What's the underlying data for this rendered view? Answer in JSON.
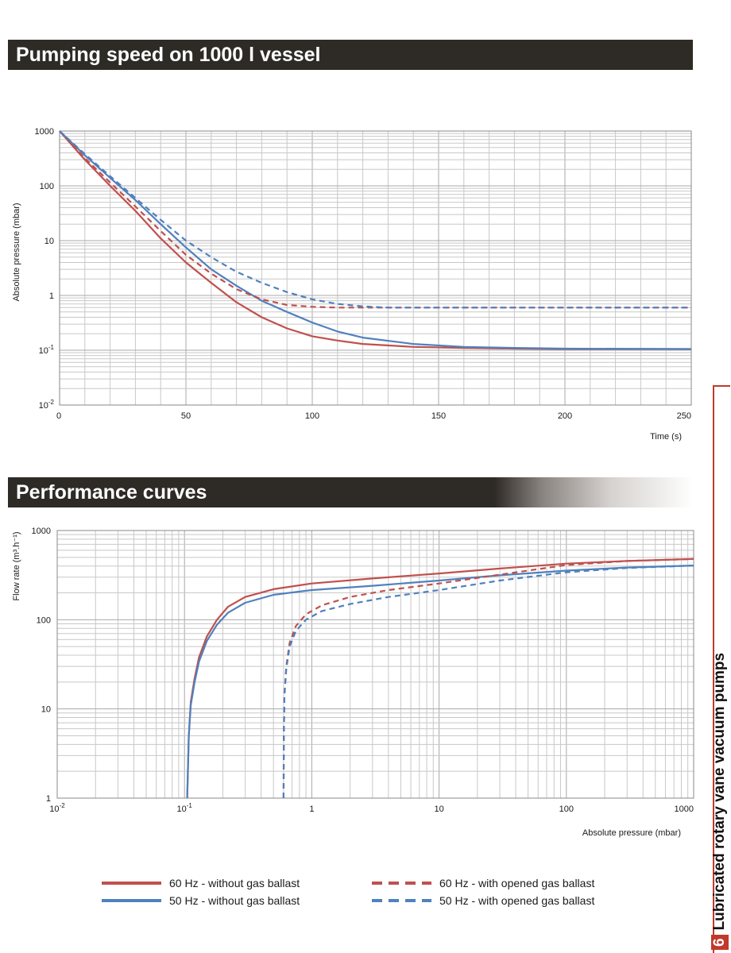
{
  "headers": {
    "pumping_speed": "Pumping speed on 1000 l vessel",
    "performance": "Performance curves"
  },
  "sidebar": {
    "number": "6",
    "label": "Lubricated rotary vane vacuum pumps"
  },
  "colors": {
    "red": "#c0504d",
    "blue": "#4f81bd",
    "grid": "#c8c8c8"
  },
  "chart_data": [
    {
      "type": "line",
      "title": "Pumping speed on 1000 l vessel",
      "xlabel": "Time (s)",
      "ylabel": "Absolute pressure  (mbar)",
      "xlim": [
        0,
        250
      ],
      "ylim": [
        0.01,
        1000
      ],
      "yscale": "log",
      "grid": true,
      "x_ticks": [
        "0",
        "50",
        "100",
        "150",
        "200",
        "250"
      ],
      "series": [
        {
          "name": "60 Hz - without gas ballast",
          "color": "#c0504d",
          "dash": false,
          "x": [
            0,
            10,
            20,
            30,
            40,
            50,
            60,
            70,
            80,
            90,
            100,
            110,
            120,
            140,
            160,
            180,
            200,
            250
          ],
          "y": [
            1000,
            300,
            100,
            35,
            11,
            4,
            1.7,
            0.75,
            0.4,
            0.25,
            0.18,
            0.15,
            0.13,
            0.115,
            0.11,
            0.107,
            0.105,
            0.105
          ]
        },
        {
          "name": "50 Hz - without gas ballast",
          "color": "#4f81bd",
          "dash": false,
          "x": [
            0,
            10,
            20,
            30,
            40,
            50,
            60,
            70,
            80,
            90,
            100,
            110,
            120,
            140,
            160,
            180,
            200,
            250
          ],
          "y": [
            1000,
            360,
            140,
            55,
            20,
            7.5,
            3,
            1.5,
            0.8,
            0.5,
            0.32,
            0.22,
            0.17,
            0.13,
            0.115,
            0.11,
            0.107,
            0.105
          ]
        },
        {
          "name": "60 Hz - with opened gas ballast",
          "color": "#c0504d",
          "dash": true,
          "x": [
            0,
            10,
            20,
            30,
            40,
            50,
            60,
            70,
            80,
            90,
            100,
            110,
            120,
            140,
            170,
            200,
            250
          ],
          "y": [
            1000,
            320,
            115,
            42,
            15,
            5.5,
            2.5,
            1.3,
            0.85,
            0.67,
            0.62,
            0.6,
            0.6,
            0.6,
            0.6,
            0.6,
            0.6
          ]
        },
        {
          "name": "50 Hz - with opened gas ballast",
          "color": "#4f81bd",
          "dash": true,
          "x": [
            0,
            10,
            20,
            30,
            40,
            50,
            60,
            70,
            80,
            90,
            100,
            110,
            120,
            130,
            140,
            170,
            200,
            250
          ],
          "y": [
            1000,
            380,
            150,
            60,
            24,
            10,
            5,
            2.7,
            1.7,
            1.15,
            0.85,
            0.7,
            0.63,
            0.6,
            0.6,
            0.6,
            0.6,
            0.6
          ]
        }
      ]
    },
    {
      "type": "line",
      "title": "Performance curves",
      "xlabel": "Absolute pressure (mbar)",
      "ylabel": "Flow rate (m³.h⁻¹)",
      "xlim": [
        0.01,
        1000
      ],
      "ylim": [
        1,
        1000
      ],
      "xscale": "log",
      "yscale": "log",
      "grid": true,
      "series": [
        {
          "name": "60 Hz - without gas ballast",
          "color": "#c0504d",
          "dash": false,
          "x": [
            0.105,
            0.108,
            0.112,
            0.12,
            0.13,
            0.15,
            0.18,
            0.22,
            0.3,
            0.5,
            1,
            3,
            10,
            30,
            100,
            300,
            1000
          ],
          "y": [
            1,
            5,
            12,
            22,
            38,
            65,
            100,
            140,
            180,
            220,
            255,
            290,
            330,
            375,
            425,
            455,
            480
          ]
        },
        {
          "name": "50 Hz - without gas ballast",
          "color": "#4f81bd",
          "dash": false,
          "x": [
            0.105,
            0.108,
            0.112,
            0.12,
            0.13,
            0.15,
            0.18,
            0.22,
            0.3,
            0.5,
            1,
            3,
            10,
            30,
            100,
            300,
            1000
          ],
          "y": [
            1,
            5,
            11,
            20,
            34,
            58,
            88,
            120,
            155,
            190,
            215,
            240,
            275,
            315,
            355,
            385,
            405
          ]
        },
        {
          "name": "60 Hz - with opened gas ballast",
          "color": "#c0504d",
          "dash": true,
          "x": [
            0.6,
            0.603,
            0.61,
            0.63,
            0.67,
            0.75,
            0.9,
            1.2,
            2,
            4,
            10,
            30,
            100,
            300,
            1000
          ],
          "y": [
            1,
            5,
            15,
            30,
            55,
            85,
            115,
            145,
            180,
            215,
            255,
            320,
            410,
            455,
            480
          ]
        },
        {
          "name": "50 Hz - with opened gas ballast",
          "color": "#4f81bd",
          "dash": true,
          "x": [
            0.6,
            0.603,
            0.61,
            0.63,
            0.67,
            0.75,
            0.9,
            1.2,
            2,
            4,
            10,
            30,
            100,
            300,
            1000
          ],
          "y": [
            1,
            5,
            14,
            28,
            50,
            75,
            100,
            125,
            150,
            180,
            215,
            275,
            340,
            380,
            405
          ]
        }
      ]
    }
  ],
  "legend": [
    {
      "label": "60 Hz - without gas ballast",
      "color": "#c0504d",
      "dash": false
    },
    {
      "label": "50 Hz - without gas ballast",
      "color": "#4f81bd",
      "dash": false
    },
    {
      "label": "60 Hz - with opened gas ballast",
      "color": "#c0504d",
      "dash": true
    },
    {
      "label": "50 Hz - with opened gas ballast",
      "color": "#4f81bd",
      "dash": true
    }
  ]
}
